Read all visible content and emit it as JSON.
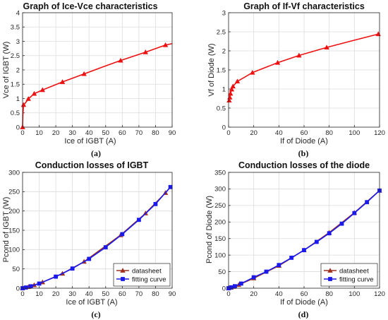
{
  "figure": {
    "captions": [
      "(a)",
      "(b)",
      "(c)",
      "(d)"
    ]
  },
  "chart_data": [
    {
      "type": "line",
      "title": "Graph of Ice-Vce characteristics",
      "xlabel": "Ice of IGBT (A)",
      "ylabel": "Vce of IGBT (W)",
      "xlim": [
        0,
        90
      ],
      "ylim": [
        0,
        4
      ],
      "xticks": [
        0,
        10,
        20,
        30,
        40,
        50,
        60,
        70,
        80,
        90
      ],
      "yticks": [
        0,
        0.5,
        1,
        1.5,
        2,
        2.5,
        3,
        3.5,
        4
      ],
      "grid": true,
      "series": [
        {
          "color": "#ee1111",
          "marker": "triangle",
          "x": [
            0,
            0.2,
            0.6,
            1.5,
            3.5,
            7,
            12,
            24,
            37,
            48,
            59,
            74,
            86,
            90
          ],
          "y": [
            0,
            0.45,
            0.78,
            0.83,
            0.99,
            1.17,
            1.3,
            1.58,
            1.86,
            2.1,
            2.33,
            2.62,
            2.87,
            2.92
          ],
          "marker_indices": [
            0,
            2,
            4,
            5,
            6,
            7,
            8,
            10,
            11,
            12
          ]
        }
      ]
    },
    {
      "type": "line",
      "title": "Graph of If-Vf characteristics",
      "xlabel": "If of Diode (A)",
      "ylabel": "Vf of Diode (W)",
      "xlim": [
        0,
        120
      ],
      "ylim": [
        0,
        3
      ],
      "xticks": [
        0,
        20,
        40,
        60,
        80,
        100,
        120
      ],
      "yticks": [
        0,
        0.5,
        1,
        1.5,
        2,
        2.5,
        3
      ],
      "grid": true,
      "series": [
        {
          "color": "#ee1111",
          "marker": "triangle",
          "x": [
            0.5,
            1,
            1.5,
            2.5,
            3.5,
            7,
            19,
            39,
            56,
            78,
            100,
            119
          ],
          "y": [
            0.7,
            0.78,
            0.88,
            0.99,
            1.07,
            1.2,
            1.43,
            1.69,
            1.88,
            2.09,
            2.28,
            2.44
          ],
          "marker_indices": [
            0,
            1,
            2,
            3,
            4,
            5,
            6,
            7,
            8,
            9,
            11
          ]
        }
      ]
    },
    {
      "type": "line",
      "title": "Conduction losses of IGBT",
      "xlabel": "Ice of IGBT (A)",
      "ylabel": "Pcond of IGBT (W)",
      "xlim": [
        0,
        90
      ],
      "ylim": [
        0,
        300
      ],
      "xticks": [
        0,
        10,
        20,
        30,
        40,
        50,
        60,
        70,
        80,
        90
      ],
      "yticks": [
        0,
        50,
        100,
        150,
        200,
        250,
        300
      ],
      "grid": true,
      "legend": "bottom-right",
      "series": [
        {
          "name": "datasheet",
          "color": "#a0301e",
          "marker": "triangle",
          "x": [
            0,
            3.5,
            7,
            12,
            24,
            37,
            59,
            74,
            86,
            89
          ],
          "y": [
            0,
            3.5,
            8.2,
            15.6,
            37.9,
            68.8,
            137.5,
            194,
            247,
            262
          ],
          "marker_indices": [
            0,
            1,
            2,
            3,
            4,
            5,
            6,
            7,
            8
          ]
        },
        {
          "name": "fitting curve",
          "color": "#1a1aee",
          "marker": "square",
          "x": [
            0,
            2,
            5,
            10,
            20,
            30,
            40,
            50,
            60,
            70,
            80,
            89
          ],
          "y": [
            0,
            1.8,
            5,
            12,
            30,
            51,
            76,
            106,
            140,
            177,
            218,
            262
          ],
          "marker_indices": [
            0,
            1,
            2,
            3,
            4,
            5,
            6,
            7,
            8,
            9,
            10,
            11
          ]
        }
      ]
    },
    {
      "type": "line",
      "title": "Conduction losses of the diode",
      "xlabel": "If of Diode (A)",
      "ylabel": "Pcond of Diode (W)",
      "xlim": [
        0,
        120
      ],
      "ylim": [
        0,
        350
      ],
      "xticks": [
        0,
        20,
        40,
        60,
        80,
        100,
        120
      ],
      "yticks": [
        0,
        50,
        100,
        150,
        200,
        250,
        300,
        350
      ],
      "grid": true,
      "legend": "bottom-right",
      "series": [
        {
          "name": "datasheet",
          "color": "#a0301e",
          "marker": "triangle",
          "x": [
            0,
            2,
            4,
            8,
            20,
            40,
            60,
            80,
            100,
            120
          ],
          "y": [
            0,
            2,
            4.5,
            10,
            30,
            68,
            115,
            168,
            228,
            295
          ],
          "marker_indices": [
            0,
            1,
            2,
            3,
            4,
            5,
            6,
            7,
            8,
            9
          ]
        },
        {
          "name": "fitting curve",
          "color": "#1a1aee",
          "marker": "square",
          "x": [
            0,
            2,
            5,
            10,
            20,
            30,
            40,
            50,
            60,
            70,
            80,
            90,
            100,
            110,
            120
          ],
          "y": [
            0,
            2.5,
            6,
            14,
            33,
            50,
            70,
            92,
            115,
            140,
            166,
            195,
            227,
            260,
            295
          ],
          "marker_indices": [
            0,
            1,
            2,
            3,
            4,
            5,
            6,
            7,
            8,
            9,
            10,
            11,
            12,
            13,
            14
          ]
        }
      ]
    }
  ]
}
